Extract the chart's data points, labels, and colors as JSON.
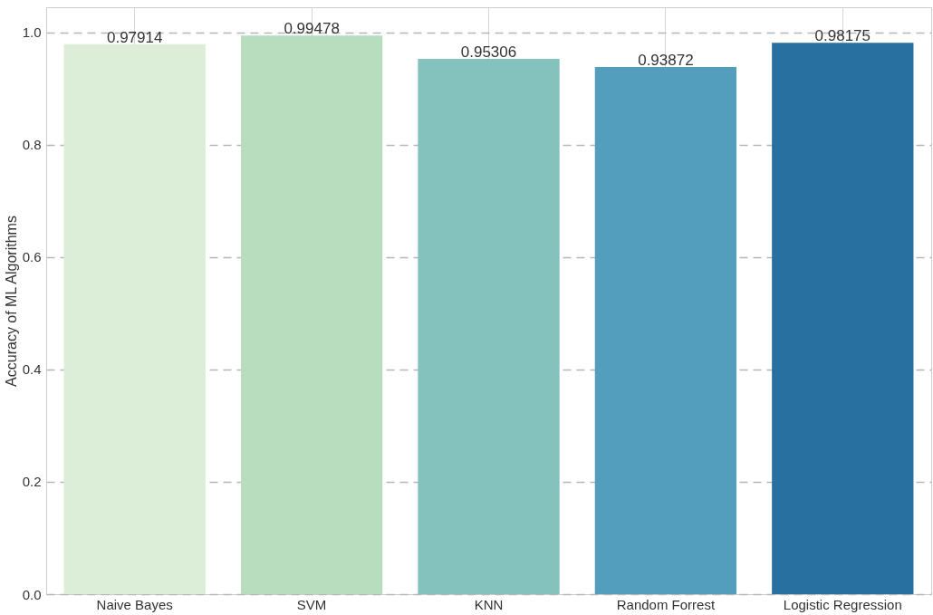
{
  "chart_data": {
    "type": "bar",
    "ylabel": "Accuracy of ML Algorithms",
    "categories": [
      "Naive Bayes",
      "SVM",
      "KNN",
      "Random Forrest",
      "Logistic Regression"
    ],
    "values": [
      0.97914,
      0.99478,
      0.95306,
      0.93872,
      0.98175
    ],
    "colors": [
      "#dcedd8",
      "#b8dcbe",
      "#84c2bd",
      "#549ebd",
      "#2870a0"
    ],
    "ylim": [
      0,
      1.045
    ],
    "yticks": [
      {
        "value": 0,
        "label": "0.0"
      },
      0.2,
      0.4,
      0.6,
      0.8,
      {
        "value": 1,
        "label": "1.0"
      }
    ],
    "grid": true,
    "data_labels": true
  }
}
